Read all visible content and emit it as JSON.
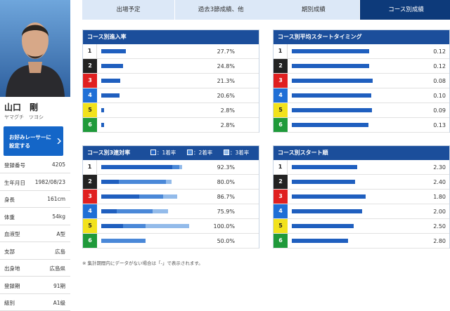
{
  "profile": {
    "name": "山口　剛",
    "kana": "ヤマグチ　ツヨシ",
    "favorite_button": [
      "お好みレーサーに",
      "設定する"
    ],
    "rows": [
      [
        "登録番号",
        "4205"
      ],
      [
        "生年月日",
        "1982/08/23"
      ],
      [
        "身長",
        "161cm"
      ],
      [
        "体重",
        "54kg"
      ],
      [
        "血液型",
        "A型"
      ],
      [
        "支部",
        "広島"
      ],
      [
        "出身地",
        "広島県"
      ],
      [
        "登録期",
        "91期"
      ],
      [
        "級別",
        "A1級"
      ]
    ]
  },
  "tabs": [
    "出場予定",
    "過去3節成績、他",
    "期別成績",
    "コース別成績"
  ],
  "active_tab": 3,
  "chart_data": [
    {
      "type": "bar",
      "title": "コース別進入率",
      "categories": [
        "1",
        "2",
        "3",
        "4",
        "5",
        "6"
      ],
      "values": [
        27.7,
        24.8,
        21.3,
        20.6,
        2.8,
        2.8
      ],
      "value_labels": [
        "27.7%",
        "24.8%",
        "21.3%",
        "20.6%",
        "2.8%",
        "2.8%"
      ],
      "xlim": [
        0,
        100
      ],
      "color": "#1f5fbf"
    },
    {
      "type": "bar",
      "title": "コース別平均スタートタイミング",
      "categories": [
        "1",
        "2",
        "3",
        "4",
        "5",
        "6"
      ],
      "values": [
        0.12,
        0.12,
        0.08,
        0.1,
        0.09,
        0.13
      ],
      "value_labels": [
        "0.12",
        "0.12",
        "0.08",
        "0.10",
        "0.09",
        "0.13"
      ],
      "xlim": [
        1,
        0
      ],
      "color": "#1f5fbf"
    },
    {
      "type": "stacked_bar",
      "title": "コース別3連対率",
      "categories": [
        "1",
        "2",
        "3",
        "4",
        "5",
        "6"
      ],
      "series": [
        {
          "name": "：1着率",
          "color": "#1f5fbf",
          "values": [
            80.8,
            20.0,
            43.3,
            17.3,
            25.0,
            0
          ]
        },
        {
          "name": "：2着率",
          "color": "#4a88d8",
          "values": [
            7.7,
            53.3,
            26.7,
            41.4,
            25.0,
            50.0
          ]
        },
        {
          "name": "：3着率",
          "color": "#93bbea",
          "values": [
            3.8,
            6.7,
            16.7,
            17.2,
            50.0,
            0
          ]
        }
      ],
      "totals": [
        92.3,
        80.0,
        86.7,
        75.9,
        100.0,
        50.0
      ],
      "total_labels": [
        "92.3%",
        "80.0%",
        "86.7%",
        "75.9%",
        "100.0%",
        "50.0%"
      ],
      "xlim": [
        0,
        100
      ]
    },
    {
      "type": "bar",
      "title": "コース別スタート順",
      "categories": [
        "1",
        "2",
        "3",
        "4",
        "5",
        "6"
      ],
      "values": [
        2.3,
        2.4,
        1.8,
        2.0,
        2.5,
        2.8
      ],
      "value_labels": [
        "2.30",
        "2.40",
        "1.80",
        "2.00",
        "2.50",
        "2.80"
      ],
      "xlim": [
        6,
        1
      ],
      "color": "#1f5fbf"
    }
  ],
  "footnote": "※ 集計期間内にデータがない場合は「-」で表示されます。"
}
